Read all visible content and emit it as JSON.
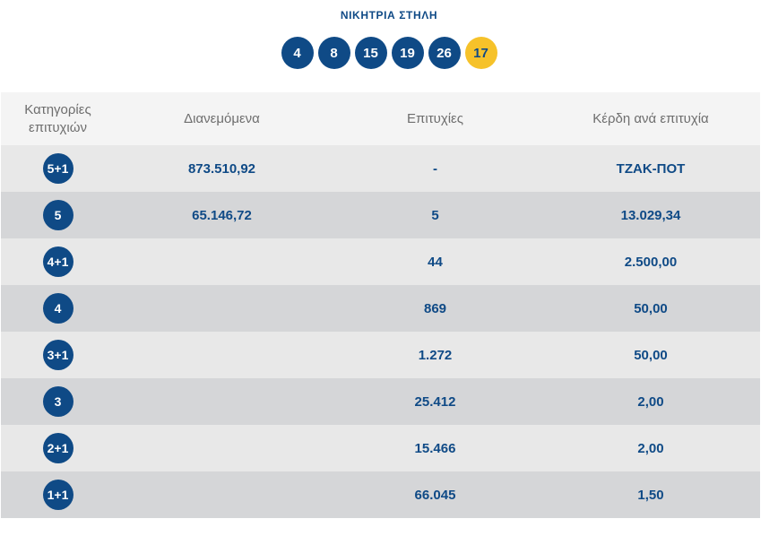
{
  "title": "ΝΙΚΗΤΡΙΑ ΣΤΗΛΗ",
  "numbers": [
    "4",
    "8",
    "15",
    "19",
    "26"
  ],
  "bonus": "17",
  "headers": {
    "category": "Κατηγορίες επιτυχιών",
    "distributed": "Διανεμόμενα",
    "winners": "Επιτυχίες",
    "prize": "Κέρδη ανά επιτυχία"
  },
  "rows": [
    {
      "category": "5+1",
      "distributed": "873.510,92",
      "winners": "-",
      "prize": "ΤΖΑΚ-ΠΟΤ"
    },
    {
      "category": "5",
      "distributed": "65.146,72",
      "winners": "5",
      "prize": "13.029,34"
    },
    {
      "category": "4+1",
      "distributed": "",
      "winners": "44",
      "prize": "2.500,00"
    },
    {
      "category": "4",
      "distributed": "",
      "winners": "869",
      "prize": "50,00"
    },
    {
      "category": "3+1",
      "distributed": "",
      "winners": "1.272",
      "prize": "50,00"
    },
    {
      "category": "3",
      "distributed": "",
      "winners": "25.412",
      "prize": "2,00"
    },
    {
      "category": "2+1",
      "distributed": "",
      "winners": "15.466",
      "prize": "2,00"
    },
    {
      "category": "1+1",
      "distributed": "",
      "winners": "66.045",
      "prize": "1,50"
    }
  ],
  "colors": {
    "primary": "#0f4a86",
    "bonus": "#f6c22a",
    "header_bg": "#f4f4f4",
    "row_light": "#e8e8e8",
    "row_dark": "#d5d6d8"
  }
}
